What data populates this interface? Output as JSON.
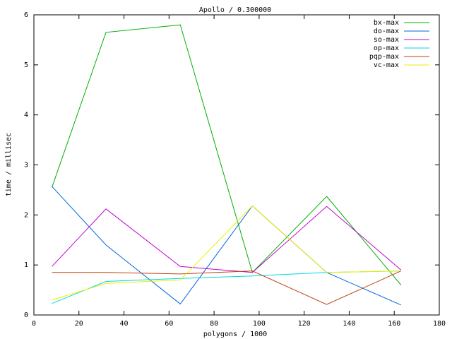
{
  "chart_data": {
    "type": "line",
    "title": "Apollo / 0.300000",
    "x_label": "polygons / 1000",
    "y_label": "time / millisec",
    "xlim": [
      0,
      180
    ],
    "xticks": [
      0,
      20,
      40,
      60,
      80,
      100,
      120,
      140,
      160,
      180
    ],
    "ylim": [
      0,
      6
    ],
    "yticks": [
      0,
      1,
      2,
      3,
      4,
      5,
      6
    ],
    "legend": "top-right",
    "x": [
      8,
      32,
      65,
      97,
      130,
      163
    ],
    "series": [
      {
        "name": "bx-max",
        "color": "#00b000",
        "values": [
          2.55,
          5.65,
          5.8,
          0.85,
          2.37,
          0.6
        ]
      },
      {
        "name": "do-max",
        "color": "#0066dd",
        "values": [
          2.57,
          1.4,
          0.22,
          2.18,
          0.85,
          0.2
        ]
      },
      {
        "name": "so-max",
        "color": "#c000d0",
        "values": [
          0.97,
          2.12,
          0.97,
          0.85,
          2.17,
          0.9
        ]
      },
      {
        "name": "op-max",
        "color": "#00d8e0",
        "values": [
          0.23,
          0.67,
          0.73,
          0.78,
          0.85,
          0.88
        ]
      },
      {
        "name": "pqp-max",
        "color": "#c04010",
        "values": [
          0.85,
          0.85,
          0.82,
          0.88,
          0.21,
          0.88
        ]
      },
      {
        "name": "vc-max",
        "color": "#eeee00",
        "values": [
          0.3,
          0.63,
          0.7,
          2.18,
          0.85,
          0.88
        ]
      }
    ]
  }
}
